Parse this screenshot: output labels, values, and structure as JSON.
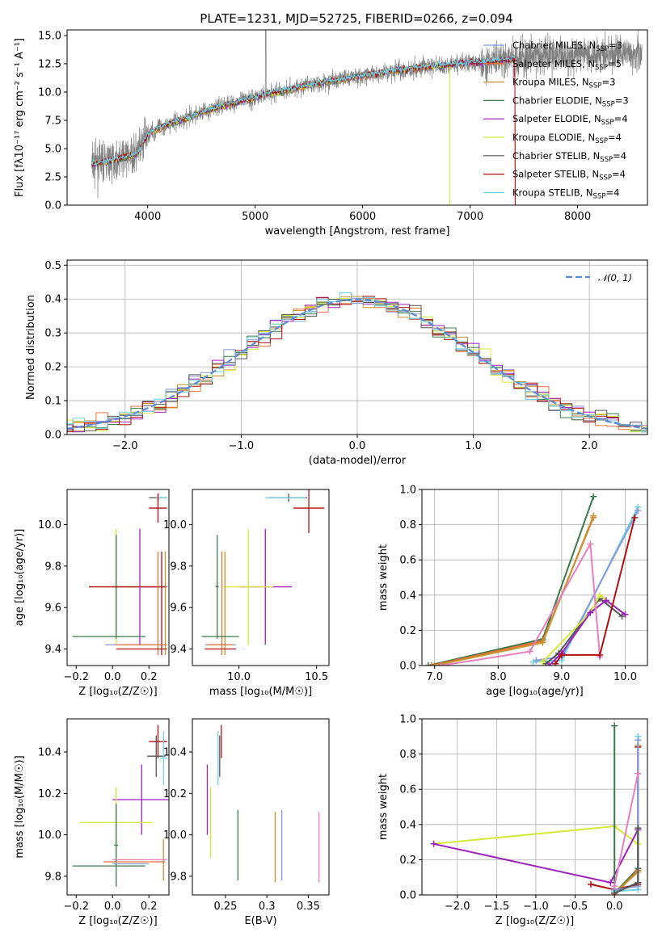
{
  "figure_title": "PLATE=1231, MJD=52725, FIBERID=0266, z=0.094",
  "models": [
    {
      "name": "Chabrier MILES, N",
      "sub": "SSP",
      "tail": "=3",
      "color": "#8899dd"
    },
    {
      "name": "Salpeter MILES, N",
      "sub": "SSP",
      "tail": "=5",
      "color": "#e8703a"
    },
    {
      "name": "Kroupa MILES, N",
      "sub": "SSP",
      "tail": "=3",
      "color": "#c8942a"
    },
    {
      "name": "Chabrier ELODIE, N",
      "sub": "SSP",
      "tail": "=3",
      "color": "#3a7a4a"
    },
    {
      "name": "Salpeter ELODIE, N",
      "sub": "SSP",
      "tail": "=4",
      "color": "#a020c0"
    },
    {
      "name": "Kroupa ELODIE, N",
      "sub": "SSP",
      "tail": "=4",
      "color": "#d4e835"
    },
    {
      "name": "Chabrier STELIB, N",
      "sub": "SSP",
      "tail": "=4",
      "color": "#555555"
    },
    {
      "name": "Salpeter STELIB, N",
      "sub": "SSP",
      "tail": "=4",
      "color": "#b01010"
    },
    {
      "name": "Kroupa STELIB, N",
      "sub": "SSP",
      "tail": "=4",
      "color": "#6fd3e6"
    }
  ],
  "chart_data": [
    {
      "id": "spectrum",
      "type": "line",
      "xlabel": "wavelength [Angstrom, rest frame]",
      "ylabel": "Flux [fλ10⁻¹⁷ erg cm⁻² s⁻¹ A⁻¹]",
      "xlim": [
        3250,
        8650
      ],
      "ylim": [
        0,
        15.5
      ],
      "xticks": [
        4000,
        5000,
        6000,
        7000,
        8000
      ],
      "yticks": [
        0.0,
        2.5,
        5.0,
        7.5,
        10.0,
        12.5,
        15.0
      ],
      "series_shape": {
        "x": [
          3480,
          3600,
          3700,
          3800,
          3900,
          4000,
          4100,
          4200,
          4300,
          4400,
          4500,
          4600,
          4700,
          4800,
          4900,
          5000,
          5100,
          5200,
          5300,
          5400,
          5500,
          5600,
          5700,
          5800,
          5900,
          6000,
          6100,
          6200,
          6300,
          6400,
          6500,
          6600,
          6700,
          6800,
          6900,
          7000,
          7100,
          7200,
          7300,
          7400,
          7500,
          7600,
          7700,
          7800,
          7900,
          8000
        ],
        "y": [
          3.6,
          3.8,
          4.0,
          4.3,
          4.5,
          6.3,
          6.8,
          7.2,
          7.5,
          7.8,
          8.2,
          8.5,
          8.8,
          9.0,
          9.3,
          9.5,
          9.8,
          10.0,
          10.2,
          10.4,
          10.6,
          10.8,
          11.0,
          11.1,
          11.3,
          11.4,
          11.6,
          11.7,
          11.9,
          12.0,
          12.1,
          12.2,
          12.3,
          12.4,
          12.5,
          12.6,
          12.6,
          12.7,
          12.8,
          12.9,
          13.0,
          13.1,
          13.2,
          13.3,
          13.3,
          13.4
        ]
      }
    },
    {
      "id": "residuals",
      "type": "line",
      "xlabel": "(data-model)/error",
      "ylabel": "Normed distribution",
      "xlim": [
        -2.5,
        2.5
      ],
      "ylim": [
        0,
        0.515
      ],
      "xticks": [
        -2,
        -1,
        0,
        1,
        2
      ],
      "yticks": [
        0.0,
        0.1,
        0.2,
        0.3,
        0.4,
        0.5
      ],
      "legend": "𝒩(0, 1)",
      "legend_position": "top-right",
      "gaussian": {
        "mean": 0,
        "sigma": 1
      }
    },
    {
      "id": "age_vs_Z",
      "type": "scatter",
      "xlabel": "Z [log₁₀(Z/Z☉)]",
      "ylabel": "age  [log₁₀(age/yr)]",
      "xlim": [
        -0.25,
        0.31
      ],
      "ylim": [
        9.32,
        10.17
      ],
      "xticks": [
        -0.2,
        0.0,
        0.2
      ],
      "yticks": [
        9.4,
        9.6,
        9.8,
        10.0
      ],
      "points": [
        {
          "x": 0.25,
          "y": 10.13,
          "xerr": 0.05,
          "yerr": 0.02,
          "c": 6
        },
        {
          "x": 0.27,
          "y": 10.13,
          "xerr": 0.03,
          "yerr": 0.0,
          "c": 8
        },
        {
          "x": 0.25,
          "y": 10.08,
          "xerr": 0.05,
          "yerr": 0.07,
          "c": 7
        },
        {
          "x": 0.15,
          "y": 9.7,
          "xerr": 0.15,
          "yerr": 0.28,
          "c": 4
        },
        {
          "x": 0.02,
          "y": 9.7,
          "xerr": 0.14,
          "yerr": 0.28,
          "c": 5
        },
        {
          "x": 0.02,
          "y": 9.7,
          "xerr": 0.01,
          "yerr": 0.25,
          "c": 3
        },
        {
          "x": 0.08,
          "y": 9.7,
          "xerr": 0.21,
          "yerr": 0.0,
          "c": 7
        },
        {
          "x": 0.25,
          "y": 9.62,
          "xerr": 0.0,
          "yerr": 0.25,
          "c": 1
        },
        {
          "x": 0.29,
          "y": 9.62,
          "xerr": 0.0,
          "yerr": 0.25,
          "c": 2
        },
        {
          "x": 0.27,
          "y": 9.62,
          "xerr": 0.0,
          "yerr": 0.25,
          "c": 7
        },
        {
          "x": -0.02,
          "y": 9.46,
          "xerr": 0.2,
          "yerr": 0.0,
          "c": 3
        },
        {
          "x": 0.12,
          "y": 9.42,
          "xerr": 0.16,
          "yerr": 0.0,
          "c": 0
        },
        {
          "x": 0.16,
          "y": 9.42,
          "xerr": 0.14,
          "yerr": 0.0,
          "c": 1
        },
        {
          "x": 0.16,
          "y": 9.4,
          "xerr": 0.14,
          "yerr": 0.0,
          "c": 7
        }
      ]
    },
    {
      "id": "age_vs_mass",
      "type": "scatter",
      "xlabel": "mass [log₁₀(M/M☉)]",
      "xlim": [
        9.7,
        10.58
      ],
      "ylim": [
        9.32,
        10.17
      ],
      "xticks": [
        10.0,
        10.5
      ],
      "yticks": [
        9.4,
        9.6,
        9.8,
        10.0
      ],
      "points": [
        {
          "x": 10.32,
          "y": 10.13,
          "xerr": 0.12,
          "yerr": 0.02,
          "c": 6
        },
        {
          "x": 10.3,
          "y": 10.13,
          "xerr": 0.13,
          "yerr": 0.0,
          "c": 8
        },
        {
          "x": 10.45,
          "y": 10.08,
          "xerr": 0.1,
          "yerr": 0.12,
          "c": 7
        },
        {
          "x": 10.17,
          "y": 9.7,
          "xerr": 0.17,
          "yerr": 0.28,
          "c": 4
        },
        {
          "x": 10.06,
          "y": 9.7,
          "xerr": 0.16,
          "yerr": 0.28,
          "c": 5
        },
        {
          "x": 9.86,
          "y": 9.7,
          "xerr": 0.01,
          "yerr": 0.25,
          "c": 3
        },
        {
          "x": 9.89,
          "y": 9.62,
          "xerr": 0.0,
          "yerr": 0.25,
          "c": 1
        },
        {
          "x": 9.91,
          "y": 9.62,
          "xerr": 0.0,
          "yerr": 0.25,
          "c": 2
        },
        {
          "x": 9.88,
          "y": 9.46,
          "xerr": 0.12,
          "yerr": 0.0,
          "c": 3
        },
        {
          "x": 9.88,
          "y": 9.42,
          "xerr": 0.1,
          "yerr": 0.0,
          "c": 0
        },
        {
          "x": 9.88,
          "y": 9.42,
          "xerr": 0.08,
          "yerr": 0.0,
          "c": 1
        },
        {
          "x": 9.88,
          "y": 9.4,
          "xerr": 0.1,
          "yerr": 0.0,
          "c": 7
        }
      ]
    },
    {
      "id": "weight_vs_age",
      "type": "line",
      "xlabel": "age  [log₁₀(age/yr)]",
      "ylabel": "mass weight",
      "xlim": [
        6.8,
        10.35
      ],
      "ylim": [
        0,
        1.0
      ],
      "xticks": [
        7,
        8,
        9,
        10
      ],
      "yticks": [
        0.0,
        0.2,
        0.4,
        0.6,
        0.8,
        1.0
      ],
      "series": [
        {
          "c": 3,
          "x": [
            6.9,
            8.7,
            9.5
          ],
          "y": [
            0.0,
            0.15,
            0.96
          ]
        },
        {
          "c": 1,
          "x": [
            6.95,
            8.7,
            9.5
          ],
          "y": [
            0.0,
            0.14,
            0.84
          ]
        },
        {
          "c": 2,
          "x": [
            7.0,
            8.7,
            9.5
          ],
          "y": [
            0.0,
            0.13,
            0.85
          ]
        },
        {
          "c": 8,
          "x": [
            8.55,
            9.0,
            10.2
          ],
          "y": [
            0.02,
            0.03,
            0.9
          ]
        },
        {
          "c": 0,
          "x": [
            8.6,
            9.0,
            10.2
          ],
          "y": [
            0.03,
            0.05,
            0.88
          ]
        },
        {
          "c": 6,
          "x": [
            8.75,
            8.95,
            9.6,
            9.95
          ],
          "y": [
            0.01,
            0.07,
            0.38,
            0.28
          ]
        },
        {
          "c": 5,
          "x": [
            8.7,
            9.45,
            9.6,
            10.0
          ],
          "y": [
            0.02,
            0.3,
            0.4,
            0.29
          ]
        },
        {
          "c": 4,
          "x": [
            8.8,
            9.0,
            9.45,
            9.7,
            10.0
          ],
          "y": [
            0.0,
            0.07,
            0.3,
            0.37,
            0.29
          ]
        },
        {
          "c": 9,
          "x": [
            7.1,
            8.5,
            9.45,
            9.6
          ],
          "y": [
            0.0,
            0.08,
            0.69,
            0.05
          ]
        },
        {
          "c": 7,
          "x": [
            8.9,
            9.0,
            9.6,
            10.15
          ],
          "y": [
            0.01,
            0.06,
            0.06,
            0.84
          ]
        }
      ]
    },
    {
      "id": "mass_vs_Z",
      "type": "scatter",
      "xlabel": "Z [log₁₀(Z/Z☉)]",
      "ylabel": "mass [log₁₀(M/M☉)]",
      "xlim": [
        -0.25,
        0.31
      ],
      "ylim": [
        9.71,
        10.56
      ],
      "xticks": [
        -0.2,
        0.0,
        0.2
      ],
      "yticks": [
        9.8,
        10.0,
        10.2,
        10.4
      ],
      "points": [
        {
          "x": 0.25,
          "y": 10.45,
          "xerr": 0.05,
          "yerr": 0.08,
          "c": 7
        },
        {
          "x": 0.24,
          "y": 10.38,
          "xerr": 0.05,
          "yerr": 0.1,
          "c": 6
        },
        {
          "x": 0.28,
          "y": 10.37,
          "xerr": 0.02,
          "yerr": 0.13,
          "c": 8
        },
        {
          "x": 0.16,
          "y": 10.17,
          "xerr": 0.16,
          "yerr": 0.17,
          "c": 4
        },
        {
          "x": 0.02,
          "y": 10.06,
          "xerr": 0.2,
          "yerr": 0.17,
          "c": 5
        },
        {
          "x": 0.02,
          "y": 9.95,
          "xerr": 0.01,
          "yerr": 0.2,
          "c": 3
        },
        {
          "x": 0.28,
          "y": 9.88,
          "xerr": 0.0,
          "yerr": 0.1,
          "c": 2
        },
        {
          "x": 0.15,
          "y": 9.88,
          "xerr": 0.15,
          "yerr": 0.0,
          "c": 9
        },
        {
          "x": 0.12,
          "y": 9.87,
          "xerr": 0.17,
          "yerr": 0.0,
          "c": 1
        },
        {
          "x": 0.1,
          "y": 9.86,
          "xerr": 0.1,
          "yerr": 0.0,
          "c": 0
        },
        {
          "x": -0.02,
          "y": 9.85,
          "xerr": 0.2,
          "yerr": 0.0,
          "c": 3
        }
      ]
    },
    {
      "id": "mass_vs_EBV",
      "type": "scatter",
      "xlabel": "E(B-V)",
      "xlim": [
        0.21,
        0.375
      ],
      "ylim": [
        9.71,
        10.56
      ],
      "xticks": [
        0.25,
        0.3,
        0.35
      ],
      "yticks": [
        9.8,
        10.0,
        10.2,
        10.4
      ],
      "points": [
        {
          "x": 0.245,
          "y": 10.45,
          "yerr": 0.08,
          "c": 7
        },
        {
          "x": 0.243,
          "y": 10.38,
          "yerr": 0.1,
          "c": 6
        },
        {
          "x": 0.241,
          "y": 10.37,
          "yerr": 0.13,
          "c": 8
        },
        {
          "x": 0.228,
          "y": 10.17,
          "yerr": 0.17,
          "c": 4
        },
        {
          "x": 0.232,
          "y": 10.06,
          "yerr": 0.17,
          "c": 5
        },
        {
          "x": 0.265,
          "y": 9.95,
          "yerr": 0.17,
          "c": 3
        },
        {
          "x": 0.31,
          "y": 9.94,
          "yerr": 0.17,
          "c": 2
        },
        {
          "x": 0.318,
          "y": 9.95,
          "yerr": 0.17,
          "c": 0
        },
        {
          "x": 0.363,
          "y": 9.94,
          "yerr": 0.17,
          "c": 9
        }
      ]
    },
    {
      "id": "weight_vs_Z",
      "type": "line",
      "xlabel": "Z [log₁₀(Z/Z☉)]",
      "ylabel": "mass weight",
      "xlim": [
        -2.45,
        0.42
      ],
      "ylim": [
        0,
        1.0
      ],
      "xticks": [
        -2.0,
        -1.5,
        -1.0,
        -0.5,
        0.0
      ],
      "yticks": [
        0.0,
        0.2,
        0.4,
        0.6,
        0.8,
        1.0
      ],
      "series": [
        {
          "c": 5,
          "x": [
            -2.3,
            0.0,
            0.3
          ],
          "y": [
            0.29,
            0.39,
            0.29
          ]
        },
        {
          "c": 4,
          "x": [
            -2.3,
            -0.05,
            0.3
          ],
          "y": [
            0.29,
            0.07,
            0.37
          ]
        },
        {
          "c": 3,
          "x": [
            0.0,
            0.0,
            0.3
          ],
          "y": [
            0.96,
            0.01,
            0.15
          ]
        },
        {
          "c": 1,
          "x": [
            0.0,
            0.3,
            0.3
          ],
          "y": [
            0.0,
            0.14,
            0.84
          ]
        },
        {
          "c": 2,
          "x": [
            0.0,
            0.3,
            0.3
          ],
          "y": [
            0.01,
            0.13,
            0.85
          ]
        },
        {
          "c": 7,
          "x": [
            -0.3,
            0.0,
            0.3,
            0.3
          ],
          "y": [
            0.06,
            0.03,
            0.06,
            0.84
          ]
        },
        {
          "c": 8,
          "x": [
            0.0,
            0.3,
            0.3
          ],
          "y": [
            0.02,
            0.03,
            0.9
          ]
        },
        {
          "c": 0,
          "x": [
            0.0,
            0.3,
            0.3
          ],
          "y": [
            0.03,
            0.05,
            0.88
          ]
        },
        {
          "c": 6,
          "x": [
            0.0,
            0.3,
            0.3
          ],
          "y": [
            0.01,
            0.07,
            0.38
          ]
        },
        {
          "c": 9,
          "x": [
            0.0,
            0.3
          ],
          "y": [
            0.05,
            0.69
          ]
        }
      ]
    }
  ]
}
